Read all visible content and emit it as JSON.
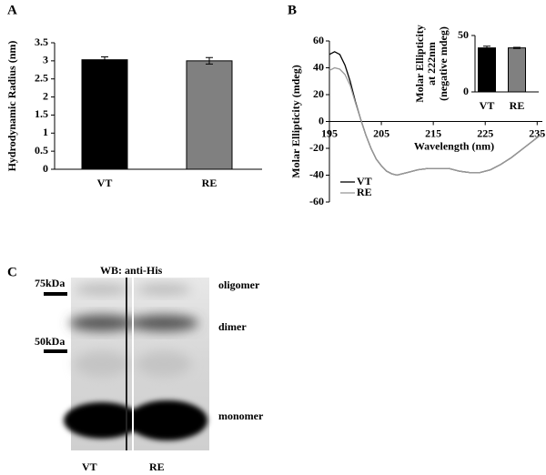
{
  "panels": {
    "a": "A",
    "b": "B",
    "c": "C"
  },
  "chart_data": [
    {
      "type": "bar",
      "ylabel": "Hydrodynamic Radius (nm)",
      "categories": [
        "VT",
        "RE"
      ],
      "values": [
        3.03,
        3.0
      ],
      "errors": [
        0.08,
        0.09
      ],
      "colors": [
        "#000000",
        "#808080"
      ],
      "ylim": [
        0,
        3.5
      ],
      "yticks": [
        0,
        0.5,
        1,
        1.5,
        2,
        2.5,
        3,
        3.5
      ]
    },
    {
      "type": "line",
      "xlabel": "Wavelength (nm)",
      "ylabel": "Molar Ellipticity (mdeg)",
      "x": [
        195,
        196,
        197,
        198,
        199,
        200,
        201,
        202,
        203,
        204,
        205,
        206,
        207,
        208,
        209,
        210,
        212,
        214,
        216,
        218,
        220,
        222,
        224,
        226,
        228,
        230,
        232,
        234,
        236
      ],
      "series": [
        {
          "name": "VT",
          "color": "#000000",
          "values": [
            50,
            52,
            50,
            42,
            30,
            15,
            2,
            -10,
            -20,
            -28,
            -33,
            -37,
            -39,
            -40,
            -39,
            -38,
            -36,
            -35,
            -35,
            -35,
            -37,
            -38,
            -38,
            -36,
            -32,
            -27,
            -21,
            -15,
            -9
          ]
        },
        {
          "name": "RE",
          "color": "#999999",
          "values": [
            38,
            40,
            39,
            35,
            27,
            14,
            2,
            -10,
            -20,
            -28,
            -33,
            -37,
            -39,
            -40,
            -39,
            -38,
            -36,
            -35,
            -35,
            -35,
            -37,
            -38,
            -38,
            -36,
            -32,
            -27,
            -21,
            -15,
            -9
          ]
        }
      ],
      "xlim": [
        195,
        236
      ],
      "xticks": [
        195,
        205,
        215,
        225,
        235
      ],
      "ylim": [
        -60,
        60
      ],
      "yticks": [
        -60,
        -40,
        -20,
        0,
        20,
        40,
        60
      ],
      "legend": "lower left"
    },
    {
      "type": "bar",
      "ylabel": [
        "Molar Ellipticity",
        "at 222nm",
        "(negative mdeg)"
      ],
      "categories": [
        "VT",
        "RE"
      ],
      "values": [
        39,
        39
      ],
      "errors": [
        1.5,
        0.5
      ],
      "colors": [
        "#000000",
        "#808080"
      ],
      "ylim": [
        0,
        50
      ],
      "yticks": [
        0,
        50
      ]
    }
  ],
  "blot": {
    "title": "WB: anti-His",
    "markers": [
      "75kDa",
      "50kDa"
    ],
    "bands": [
      "oligomer",
      "dimer",
      "monomer"
    ],
    "lanes": [
      "VT",
      "RE"
    ]
  }
}
